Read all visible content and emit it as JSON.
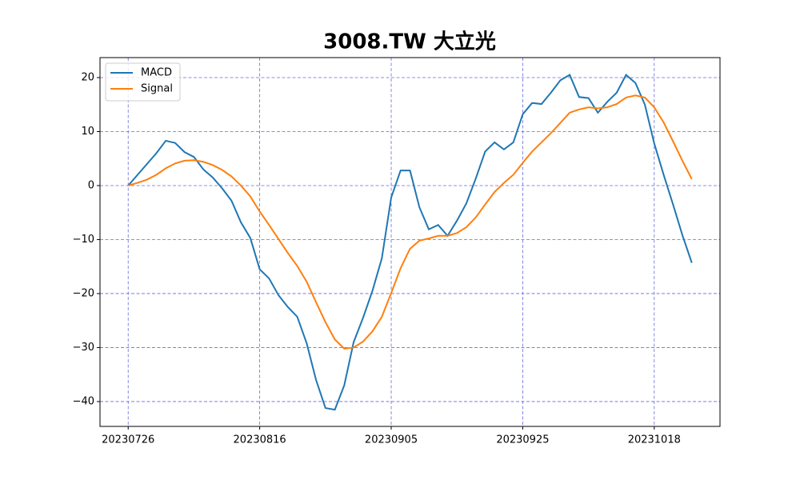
{
  "chart_data": {
    "type": "line",
    "title": "3008.TW 大立光",
    "categories": [
      "20230726",
      null,
      null,
      null,
      null,
      null,
      null,
      null,
      null,
      null,
      null,
      null,
      null,
      null,
      "20230816",
      null,
      null,
      null,
      null,
      null,
      null,
      null,
      null,
      null,
      null,
      null,
      null,
      null,
      "20230905",
      null,
      null,
      null,
      null,
      null,
      null,
      null,
      null,
      null,
      null,
      null,
      null,
      null,
      "20230925",
      null,
      null,
      null,
      null,
      null,
      null,
      null,
      null,
      null,
      null,
      null,
      null,
      null,
      "20231018",
      null,
      null,
      null,
      null
    ],
    "xlim": [
      -3,
      63
    ],
    "ylim": [
      -44.6,
      23.7
    ],
    "yticks": [
      {
        "value": -40,
        "label": "−40"
      },
      {
        "value": -30,
        "label": "−30"
      },
      {
        "value": -20,
        "label": "−20"
      },
      {
        "value": -10,
        "label": "−10"
      },
      0,
      10,
      20
    ],
    "grid": true,
    "legend": "upper left",
    "series": [
      {
        "name": "MACD",
        "color": "#1f77b4",
        "values": [
          0,
          2,
          4,
          6,
          8.3,
          7.9,
          6.2,
          5.3,
          3,
          1.5,
          -0.5,
          -2.8,
          -6.8,
          -9.7,
          -15.5,
          -17.2,
          -20.3,
          -22.5,
          -24.3,
          -29.2,
          -36,
          -41.2,
          -41.5,
          -37,
          -29,
          -24.5,
          -19.5,
          -13.5,
          -2.2,
          2.8,
          2.8,
          -4,
          -8.1,
          -7.3,
          -9.3,
          -6.5,
          -3.3,
          1.3,
          6.3,
          8,
          6.7,
          8,
          13.2,
          15.3,
          15.1,
          17.2,
          19.5,
          20.5,
          16.4,
          16.2,
          13.5,
          15.5,
          17.2,
          20.5,
          19,
          15,
          7.8,
          2,
          -3.5,
          -9.2,
          -14.3
        ]
      },
      {
        "name": "Signal",
        "color": "#ff7f0e",
        "values": [
          0,
          0.5,
          1.1,
          2,
          3.2,
          4.1,
          4.6,
          4.7,
          4.4,
          3.8,
          2.9,
          1.7,
          0,
          -2,
          -4.8,
          -7.3,
          -9.9,
          -12.5,
          -14.9,
          -17.8,
          -21.6,
          -25.3,
          -28.5,
          -30.2,
          -30,
          -28.9,
          -27,
          -24.3,
          -19.9,
          -15.3,
          -11.7,
          -10.2,
          -9.8,
          -9.3,
          -9.3,
          -8.8,
          -7.7,
          -5.9,
          -3.5,
          -1.2,
          0.5,
          2,
          4.2,
          6.3,
          8,
          9.7,
          11.6,
          13.5,
          14.1,
          14.5,
          14.3,
          14.5,
          15.1,
          16.3,
          16.7,
          16.3,
          14.5,
          11.7,
          8.2,
          4.6,
          1.2
        ]
      }
    ]
  }
}
